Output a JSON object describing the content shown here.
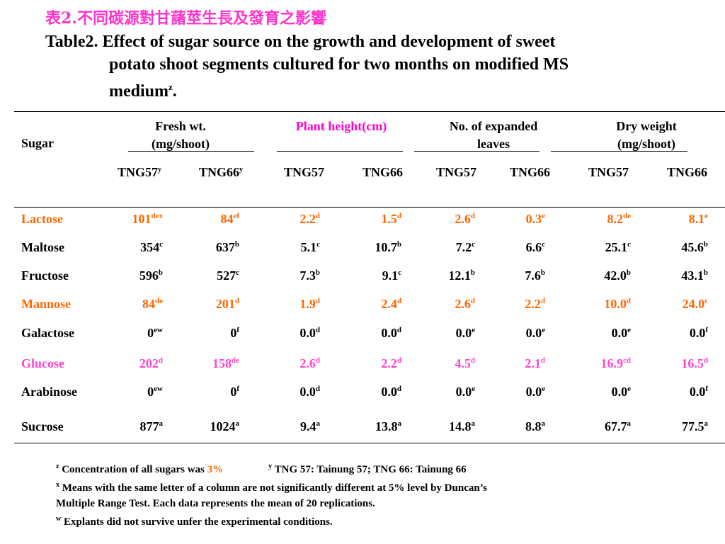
{
  "title_zh": "表2.不同碳源對甘藷莖生長及發育之影響",
  "title_en": {
    "line1": "Table2. Effect of sugar source on the growth and development of sweet",
    "line2": "potato shoot segments cultured for two months on modified MS",
    "line3": "medium",
    "line3_sup": "z",
    "line3_end": "."
  },
  "header": {
    "sugar": "Sugar",
    "fresh_wt": [
      "Fresh wt.",
      "(mg/shoot)"
    ],
    "plant_height": "Plant height(cm)",
    "leaves": [
      "No. of expanded",
      "leaves"
    ],
    "dry_weight": [
      "Dry weight",
      "(mg/shoot)"
    ]
  },
  "subheaders": [
    {
      "label": "TNG57",
      "sup": "y"
    },
    {
      "label": "TNG66",
      "sup": "y"
    },
    {
      "label": "TNG57",
      "sup": ""
    },
    {
      "label": "TNG66",
      "sup": ""
    },
    {
      "label": "TNG57",
      "sup": ""
    },
    {
      "label": "TNG66",
      "sup": ""
    },
    {
      "label": "TNG57",
      "sup": ""
    },
    {
      "label": "TNG66",
      "sup": ""
    }
  ],
  "colors": {
    "orange": "#ff6600",
    "pink": "#ff44cc",
    "title": "#ff33cc"
  },
  "rows": [
    {
      "sugar": "Lactose",
      "color": "orange",
      "cells": [
        [
          "101",
          "dex"
        ],
        [
          "84",
          "ef"
        ],
        [
          "2.2",
          "d"
        ],
        [
          "1.5",
          "d"
        ],
        [
          "2.6",
          "d"
        ],
        [
          "0.3",
          "e"
        ],
        [
          "8.2",
          "de"
        ],
        [
          "8.1",
          "e"
        ]
      ]
    },
    {
      "sugar": "Maltose",
      "color": "black",
      "cells": [
        [
          "354",
          "c"
        ],
        [
          "637",
          "b"
        ],
        [
          "5.1",
          "c"
        ],
        [
          "10.7",
          "b"
        ],
        [
          "7.2",
          "c"
        ],
        [
          "6.6",
          "c"
        ],
        [
          "25.1",
          "c"
        ],
        [
          "45.6",
          "b"
        ]
      ]
    },
    {
      "sugar": "Fructose",
      "color": "black",
      "cells": [
        [
          "596",
          "b"
        ],
        [
          "527",
          "c"
        ],
        [
          "7.3",
          "b"
        ],
        [
          "9.1",
          "c"
        ],
        [
          "12.1",
          "b"
        ],
        [
          "7.6",
          "b"
        ],
        [
          "42.0",
          "b"
        ],
        [
          "43.1",
          "b"
        ]
      ]
    },
    {
      "sugar": "Mannose",
      "color": "orange",
      "cells": [
        [
          "84",
          "de"
        ],
        [
          "201",
          "d"
        ],
        [
          "1.9",
          "d"
        ],
        [
          "2.4",
          "d"
        ],
        [
          "2.6",
          "d"
        ],
        [
          "2.2",
          "d"
        ],
        [
          "10.0",
          "d"
        ],
        [
          "24.0",
          "c"
        ]
      ]
    },
    {
      "sugar": "Galactose",
      "color": "black",
      "cells": [
        [
          "0",
          "ew"
        ],
        [
          "0",
          "f"
        ],
        [
          "0.0",
          "d"
        ],
        [
          "0.0",
          "d"
        ],
        [
          "0.0",
          "e"
        ],
        [
          "0.0",
          "e"
        ],
        [
          "0.0",
          "e"
        ],
        [
          "0.0",
          "f"
        ]
      ]
    },
    {
      "sugar": "Glucose",
      "color": "pink",
      "cells": [
        [
          "202",
          "d"
        ],
        [
          "158",
          "de"
        ],
        [
          "2.6",
          "d"
        ],
        [
          "2.2",
          "d"
        ],
        [
          "4.5",
          "d"
        ],
        [
          "2.1",
          "d"
        ],
        [
          "16.9",
          "cd"
        ],
        [
          "16.5",
          "d"
        ]
      ]
    },
    {
      "sugar": "Arabinose",
      "color": "black",
      "cells": [
        [
          "0",
          "ew"
        ],
        [
          "0",
          "f"
        ],
        [
          "0.0",
          "d"
        ],
        [
          "0.0",
          "d"
        ],
        [
          "0.0",
          "e"
        ],
        [
          "0.0",
          "e"
        ],
        [
          "0.0",
          "e"
        ],
        [
          "0.0",
          "f"
        ]
      ]
    },
    {
      "sugar": "Sucrose",
      "color": "black",
      "cells": [
        [
          "877",
          "a"
        ],
        [
          "1024",
          "a"
        ],
        [
          "9.4",
          "a"
        ],
        [
          "13.8",
          "a"
        ],
        [
          "14.8",
          "a"
        ],
        [
          "8.8",
          "a"
        ],
        [
          "67.7",
          "a"
        ],
        [
          "77.5",
          "a"
        ]
      ]
    }
  ],
  "notes": {
    "z_sup": "z",
    "z_text": "Concentration of all sugars was",
    "z_value": "3%",
    "y_sup": "y",
    "y_text": "TNG 57: Tainung 57; TNG 66: Tainung 66",
    "x_sup": "x",
    "x_line1": "Means with the same letter of a column are not significantly different at 5% level by Duncan’s",
    "x_line2": "Multiple Range Test. Each data represents the mean of 20 replications.",
    "w_sup": "w",
    "w_text": "Explants did not survive unfer the experimental conditions."
  }
}
